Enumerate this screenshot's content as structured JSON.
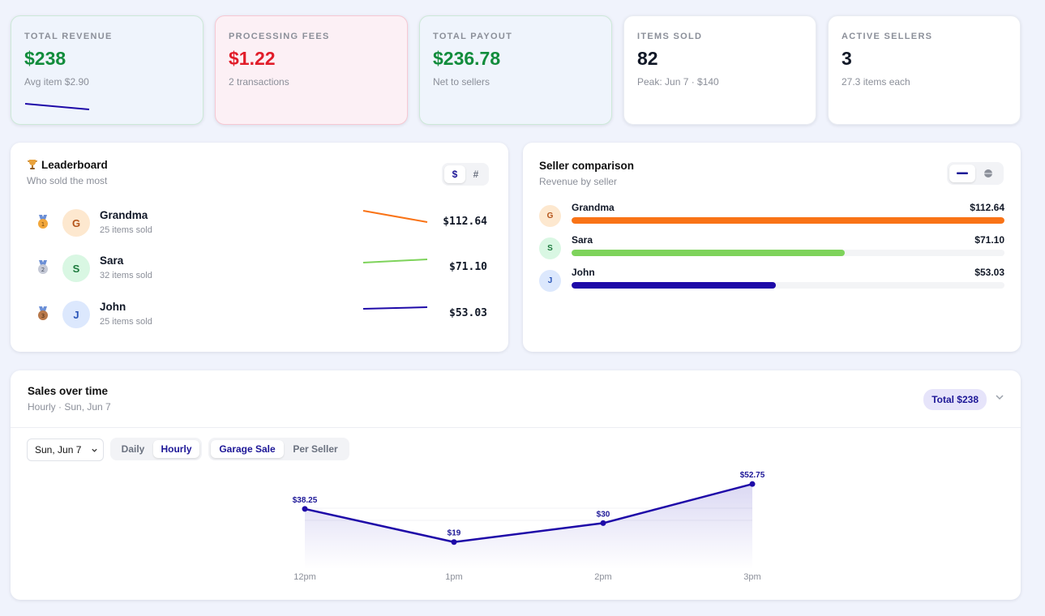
{
  "kpis": [
    {
      "label": "TOTAL REVENUE",
      "value": "$238",
      "sub": "Avg item $2.90"
    },
    {
      "label": "PROCESSING FEES",
      "value": "$1.22",
      "sub": "2 transactions"
    },
    {
      "label": "TOTAL PAYOUT",
      "value": "$236.78",
      "sub": "Net to sellers"
    },
    {
      "label": "ITEMS SOLD",
      "value": "82",
      "sub": "Peak: Jun 7 · $140"
    },
    {
      "label": "ACTIVE SELLERS",
      "value": "3",
      "sub": "27.3 items each"
    }
  ],
  "leaderboard": {
    "icon": "trophy-icon",
    "title": "Leaderboard",
    "subtitle": "Who sold the most",
    "toggle": [
      "$",
      "#"
    ],
    "rows": [
      {
        "medal": "1",
        "initial": "G",
        "name": "Grandma",
        "sub": "25 items sold",
        "amount": "$112.64"
      },
      {
        "medal": "2",
        "initial": "S",
        "name": "Sara",
        "sub": "32 items sold",
        "amount": "$71.10"
      },
      {
        "medal": "3",
        "initial": "J",
        "name": "John",
        "sub": "25 items sold",
        "amount": "$53.03"
      }
    ]
  },
  "comparison": {
    "title": "Seller comparison",
    "subtitle": "Revenue by seller",
    "rows": [
      {
        "initial": "G",
        "name": "Grandma",
        "value": "$112.64",
        "fraction": 1.0,
        "color": "#f97316"
      },
      {
        "initial": "S",
        "name": "Sara",
        "value": "$71.10",
        "fraction": 0.631,
        "color": "#7ed35b"
      },
      {
        "initial": "J",
        "name": "John",
        "value": "$53.03",
        "fraction": 0.471,
        "color": "#1e0aa8"
      }
    ]
  },
  "sales": {
    "title": "Sales over time",
    "subtitle": "Hourly · Sun, Jun 7",
    "total_pill": "Total $238",
    "date_select": "Sun, Jun 7",
    "granularity": [
      "Daily",
      "Hourly"
    ],
    "view": [
      "Garage Sale",
      "Per Seller"
    ]
  },
  "chart_data": {
    "type": "area",
    "x": [
      "12pm",
      "1pm",
      "2pm",
      "3pm"
    ],
    "series": [
      {
        "values": [
          38.25,
          19,
          30,
          52.75
        ]
      }
    ],
    "data_labels": [
      "$38.25",
      "$19",
      "$30",
      "$52.75"
    ],
    "color": "#1e0aa8"
  },
  "colors": {
    "accent": "#1d1797",
    "green": "#128c3c",
    "red": "#e11d2a",
    "orange": "#f97316",
    "lime": "#7ed35b",
    "navy": "#1e0aa8"
  }
}
